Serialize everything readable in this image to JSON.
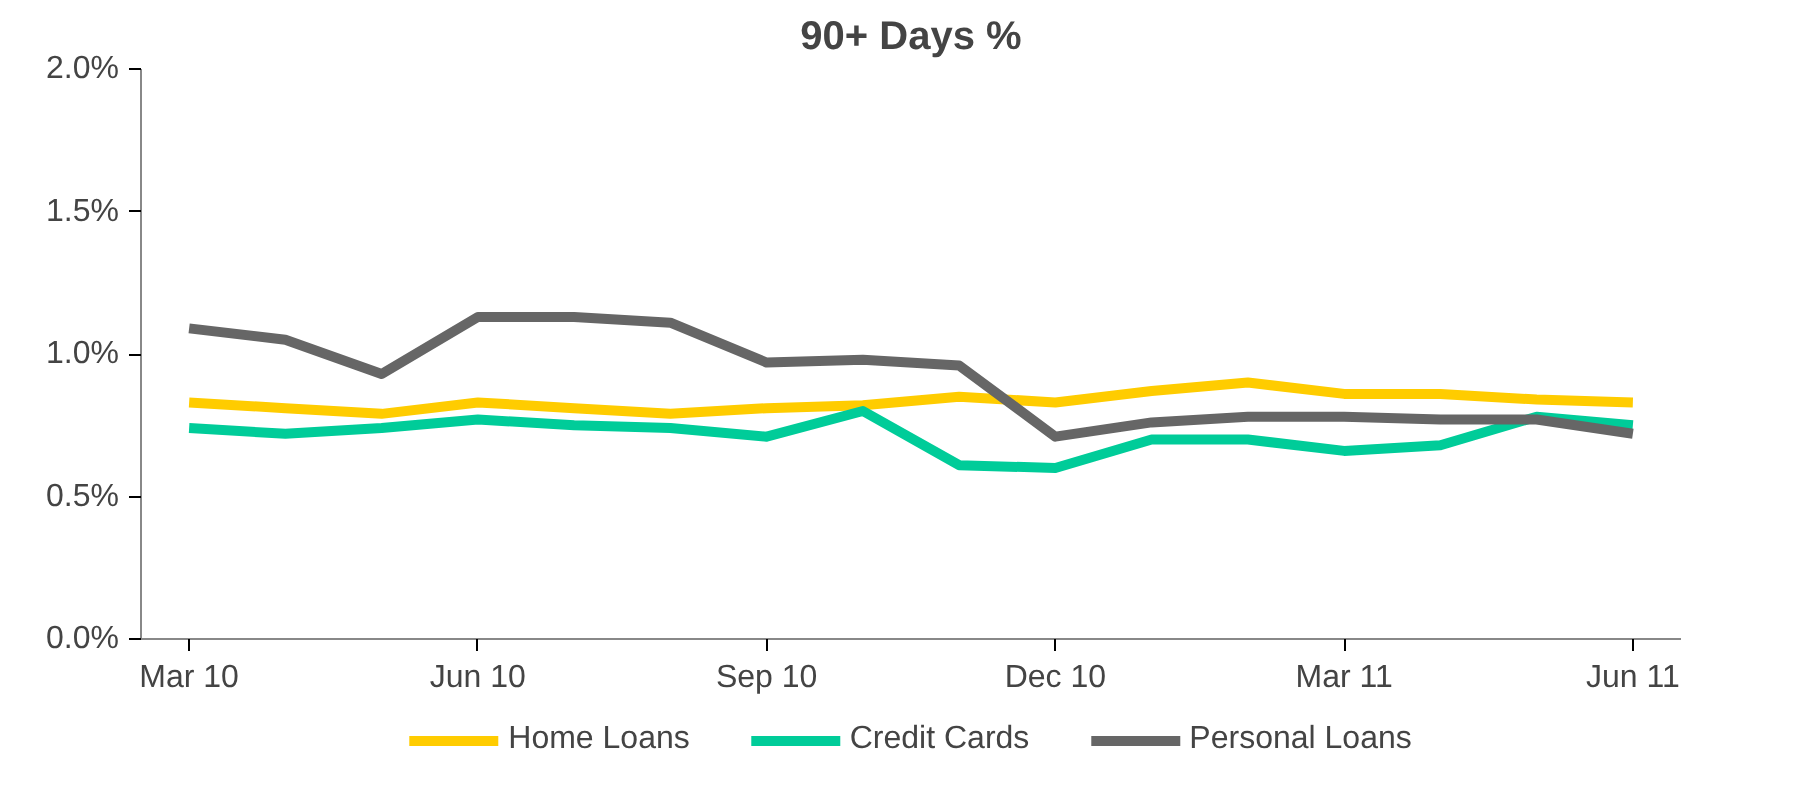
{
  "chart_data": {
    "type": "line",
    "title": "90+ Days %",
    "categories": [
      "Mar 10",
      null,
      null,
      "Jun 10",
      null,
      null,
      "Sep 10",
      null,
      null,
      "Dec 10",
      null,
      null,
      "Mar 11",
      null,
      null,
      "Jun 11"
    ],
    "series": [
      {
        "name": "Home Loans",
        "color": "#ffcc00",
        "values": [
          0.83,
          0.81,
          0.79,
          0.83,
          0.81,
          0.79,
          0.81,
          0.82,
          0.85,
          0.83,
          0.87,
          0.9,
          0.86,
          0.86,
          0.84,
          0.83
        ]
      },
      {
        "name": "Credit Cards",
        "color": "#00cc99",
        "values": [
          0.74,
          0.72,
          0.74,
          0.77,
          0.75,
          0.74,
          0.71,
          0.8,
          0.61,
          0.6,
          0.7,
          0.7,
          0.66,
          0.68,
          0.78,
          0.75
        ]
      },
      {
        "name": "Personal Loans",
        "color": "#666666",
        "values": [
          1.09,
          1.05,
          0.93,
          1.13,
          1.13,
          1.11,
          0.97,
          0.98,
          0.96,
          0.71,
          0.76,
          0.78,
          0.78,
          0.77,
          0.77,
          0.72
        ]
      }
    ],
    "ylim": [
      0,
      2.0
    ],
    "yticks": [
      {
        "value": 0,
        "label": "0.0%"
      },
      {
        "value": 0.5,
        "label": "0.5%"
      },
      {
        "value": 1.0,
        "label": "1.0%"
      },
      {
        "value": 1.5,
        "label": "1.5%"
      },
      {
        "value": 2.0,
        "label": "2.0%"
      }
    ],
    "grid": false,
    "legend": "bottom",
    "line_style": "solid"
  }
}
